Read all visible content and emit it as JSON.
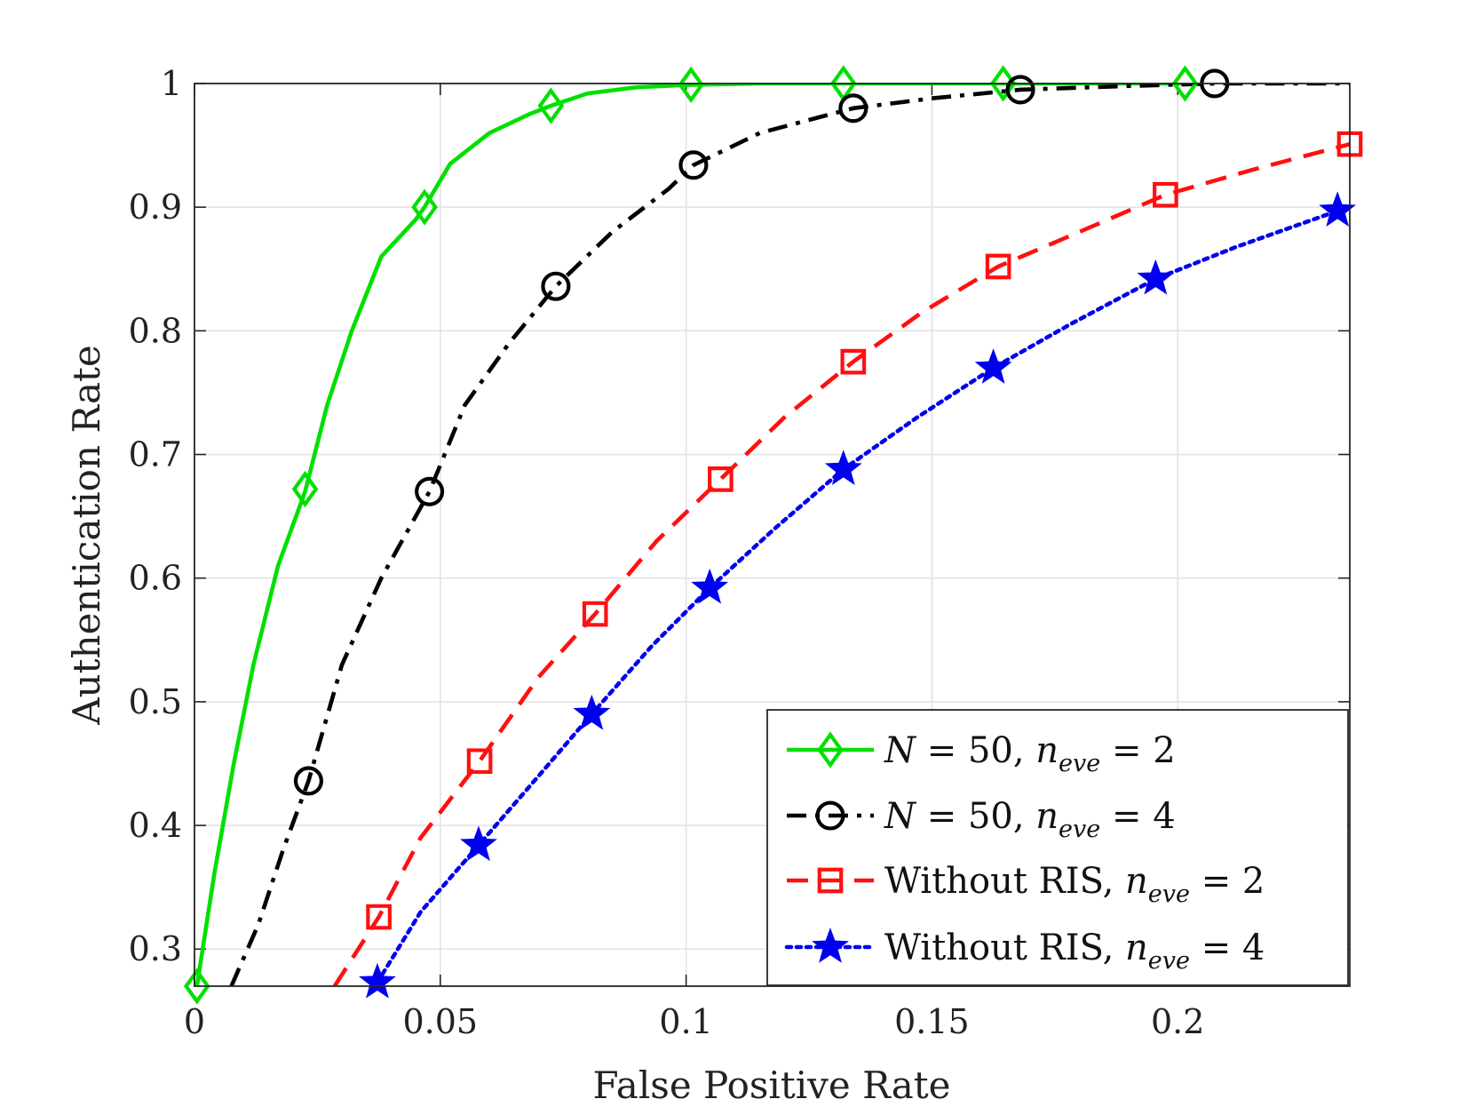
{
  "chart_data": {
    "type": "line",
    "xlabel": "False Positive Rate",
    "ylabel": "Authentication Rate",
    "xlim": [
      0,
      0.235
    ],
    "ylim": [
      0.27,
      1.0
    ],
    "xticks": [
      0,
      0.05,
      0.1,
      0.15,
      0.2
    ],
    "xtick_labels": [
      "0",
      "0.05",
      "0.1",
      "0.15",
      "0.2"
    ],
    "yticks": [
      0.3,
      0.4,
      0.5,
      0.6,
      0.7,
      0.8,
      0.9,
      1.0
    ],
    "ytick_labels": [
      "0.3",
      "0.4",
      "0.5",
      "0.6",
      "0.7",
      "0.8",
      "0.9",
      "1"
    ],
    "grid": true,
    "legend_position": "bottom-right",
    "series": [
      {
        "name": "N = 50, n_eve = 2",
        "legend": {
          "prefix": "N",
          "eq1": " = 50, ",
          "n": "n",
          "sub": "eve",
          "eq2": " = 2"
        },
        "color": "#00e000",
        "line_style": "solid",
        "marker": "diamond",
        "curve_x": [
          0.0005,
          0.004,
          0.008,
          0.012,
          0.017,
          0.0225,
          0.027,
          0.032,
          0.038,
          0.045,
          0.0468,
          0.052,
          0.06,
          0.068,
          0.0725,
          0.08,
          0.09,
          0.101,
          0.115,
          0.132,
          0.165,
          0.2,
          0.2015
        ],
        "curve_y": [
          0.27,
          0.36,
          0.45,
          0.53,
          0.61,
          0.67,
          0.74,
          0.8,
          0.86,
          0.89,
          0.9,
          0.935,
          0.96,
          0.975,
          0.982,
          0.992,
          0.997,
          0.999,
          1.0,
          1.0,
          1.0,
          1.0,
          1.0
        ],
        "marker_x": [
          0.0005,
          0.0225,
          0.0468,
          0.0725,
          0.101,
          0.132,
          0.1645,
          0.2015
        ],
        "marker_y": [
          0.27,
          0.672,
          0.9,
          0.982,
          0.999,
          1.0,
          1.0,
          1.0
        ]
      },
      {
        "name": "N = 50, n_eve = 4",
        "legend": {
          "prefix": "N",
          "eq1": " = 50, ",
          "n": "n",
          "sub": "eve",
          "eq2": " = 4"
        },
        "color": "#000000",
        "line_style": "dashdot",
        "marker": "circle",
        "curve_x": [
          0.0075,
          0.013,
          0.018,
          0.0232,
          0.03,
          0.038,
          0.0478,
          0.055,
          0.064,
          0.0735,
          0.085,
          0.0965,
          0.1015,
          0.115,
          0.134,
          0.15,
          0.168,
          0.19,
          0.2075,
          0.235
        ],
        "curve_y": [
          0.27,
          0.32,
          0.38,
          0.436,
          0.53,
          0.6,
          0.67,
          0.74,
          0.79,
          0.836,
          0.88,
          0.915,
          0.934,
          0.96,
          0.98,
          0.988,
          0.995,
          0.998,
          1.0,
          1.0
        ],
        "marker_x": [
          0.0232,
          0.0478,
          0.0735,
          0.1015,
          0.134,
          0.168,
          0.2075
        ],
        "marker_y": [
          0.436,
          0.67,
          0.836,
          0.934,
          0.98,
          0.995,
          1.0
        ]
      },
      {
        "name": "Without RIS, n_eve = 2",
        "legend": {
          "prefix": "",
          "eq1": "Without RIS, ",
          "n": "n",
          "sub": "eve",
          "eq2": " = 2"
        },
        "color": "#ff1010",
        "line_style": "dashed",
        "marker": "square",
        "curve_x": [
          0.0285,
          0.0375,
          0.046,
          0.058,
          0.07,
          0.0815,
          0.094,
          0.107,
          0.12,
          0.134,
          0.148,
          0.1635,
          0.18,
          0.1975,
          0.215,
          0.235
        ],
        "curve_y": [
          0.27,
          0.326,
          0.39,
          0.452,
          0.52,
          0.571,
          0.63,
          0.68,
          0.73,
          0.775,
          0.815,
          0.852,
          0.88,
          0.91,
          0.93,
          0.951
        ],
        "marker_x": [
          0.0375,
          0.058,
          0.0815,
          0.107,
          0.134,
          0.1635,
          0.1975,
          0.235
        ],
        "marker_y": [
          0.326,
          0.452,
          0.571,
          0.68,
          0.775,
          0.852,
          0.91,
          0.951
        ]
      },
      {
        "name": "Without RIS, n_eve = 4",
        "legend": {
          "prefix": "",
          "eq1": "Without RIS, ",
          "n": "n",
          "sub": "eve",
          "eq2": " = 4"
        },
        "color": "#0000ee",
        "line_style": "dotted",
        "marker": "star",
        "curve_x": [
          0.0372,
          0.046,
          0.0578,
          0.07,
          0.0808,
          0.093,
          0.1048,
          0.118,
          0.132,
          0.147,
          0.1625,
          0.178,
          0.1955,
          0.212,
          0.2325
        ],
        "curve_y": [
          0.273,
          0.33,
          0.384,
          0.44,
          0.49,
          0.545,
          0.592,
          0.64,
          0.688,
          0.73,
          0.77,
          0.805,
          0.842,
          0.868,
          0.897
        ],
        "marker_x": [
          0.0372,
          0.0578,
          0.0808,
          0.1048,
          0.132,
          0.1625,
          0.1955,
          0.2325
        ],
        "marker_y": [
          0.273,
          0.384,
          0.49,
          0.592,
          0.688,
          0.77,
          0.842,
          0.897
        ]
      }
    ]
  }
}
